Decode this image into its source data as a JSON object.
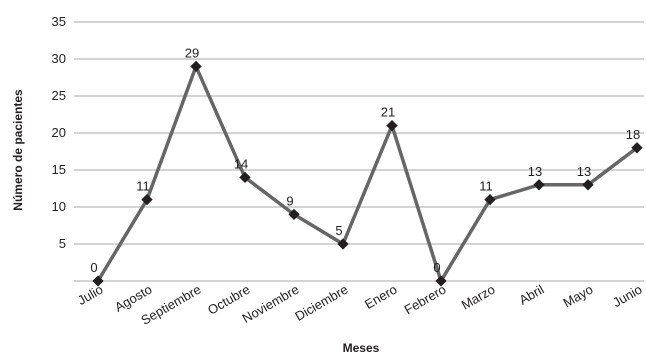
{
  "chart_data": {
    "type": "line",
    "title": "",
    "xlabel": "Meses",
    "ylabel": "Número de pacientes",
    "ylim": [
      0,
      35
    ],
    "yticks": [
      5,
      10,
      15,
      20,
      25,
      30,
      35
    ],
    "grid": "horizontal",
    "legend": "none",
    "categories": [
      "Julio",
      "Agosto",
      "Septiembre",
      "Octubre",
      "Noviembre",
      "Diciembre",
      "Enero",
      "Febrero",
      "Marzo",
      "Abril",
      "Mayo",
      "Junio"
    ],
    "series": [
      {
        "values": [
          0,
          11,
          29,
          14,
          9,
          5,
          21,
          0,
          11,
          13,
          13,
          18
        ]
      }
    ],
    "data_labels": [
      "0",
      "11",
      "29",
      "14",
      "9",
      "5",
      "21",
      "0",
      "11",
      "13",
      "13",
      "18"
    ],
    "colors": {
      "line": "#666666",
      "marker": "#231f20",
      "grid": "#a7a9ac",
      "text": "#231f20"
    }
  }
}
